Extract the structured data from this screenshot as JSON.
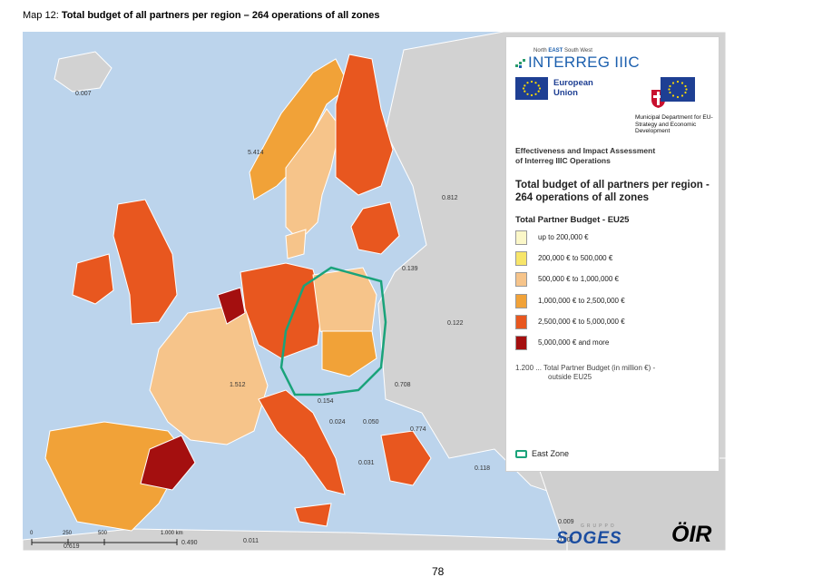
{
  "page": {
    "title_prefix": "Map 12: ",
    "title_bold": "Total budget of all partners per region – 264 operations of all zones",
    "page_number": "78"
  },
  "colors": {
    "sea": "#bcd4ec",
    "non_eu_land": "#d2d2d2",
    "east_zone_outline": "#1aa37a",
    "classes": [
      "#fbf7c8",
      "#f7e569",
      "#f6c48a",
      "#f1a238",
      "#e8571f",
      "#a40f0f"
    ]
  },
  "legend": {
    "small_header": "North EAST South West",
    "small_header_emph": "EAST",
    "interreg_logo": "INTERREG IIIC",
    "eu_label": "European Union",
    "municipal_dept": "Municipal Department for EU-Strategy and Economic Development",
    "effectiveness": "Effectiveness and Impact Assessment",
    "effectiveness_line2": "of Interreg IIIC Operations",
    "title": "Total budget of all partners per region - 264 operations of all zones",
    "budget_heading": "Total Partner Budget - EU25",
    "classes": [
      {
        "label": "up to 200,000 €",
        "color": "#fbf7c8"
      },
      {
        "label": "200,000 € to 500,000 €",
        "color": "#f7e569"
      },
      {
        "label": "500,000 € to 1,000,000 €",
        "color": "#f6c48a"
      },
      {
        "label": "1,000,000 € to 2,500,000 €",
        "color": "#f1a238"
      },
      {
        "label": "2,500,000 € to 5,000,000 €",
        "color": "#e8571f"
      },
      {
        "label": "5,000,000 € and more",
        "color": "#a40f0f"
      }
    ],
    "outside_line1": "1.200 ... Total Partner Budget (in million €) -",
    "outside_line2": "outside EU25",
    "east_zone": "East Zone"
  },
  "map": {
    "values": [
      "0.007",
      "5.414",
      "0.812",
      "0.139",
      "0.122",
      "1.512",
      "0.708",
      "0.154",
      "0.024",
      "0.050",
      "0.774",
      "0.031",
      "0.118",
      "0.619",
      "0.490",
      "0.011",
      "0.001",
      "0.009"
    ],
    "scale": {
      "s0": "0",
      "s250": "250",
      "s500": "500",
      "s1000": "1.000 km"
    },
    "credits": {
      "soges": "SOGES",
      "soges_sub": "GRUPPO",
      "oir": "ÖIR"
    }
  }
}
